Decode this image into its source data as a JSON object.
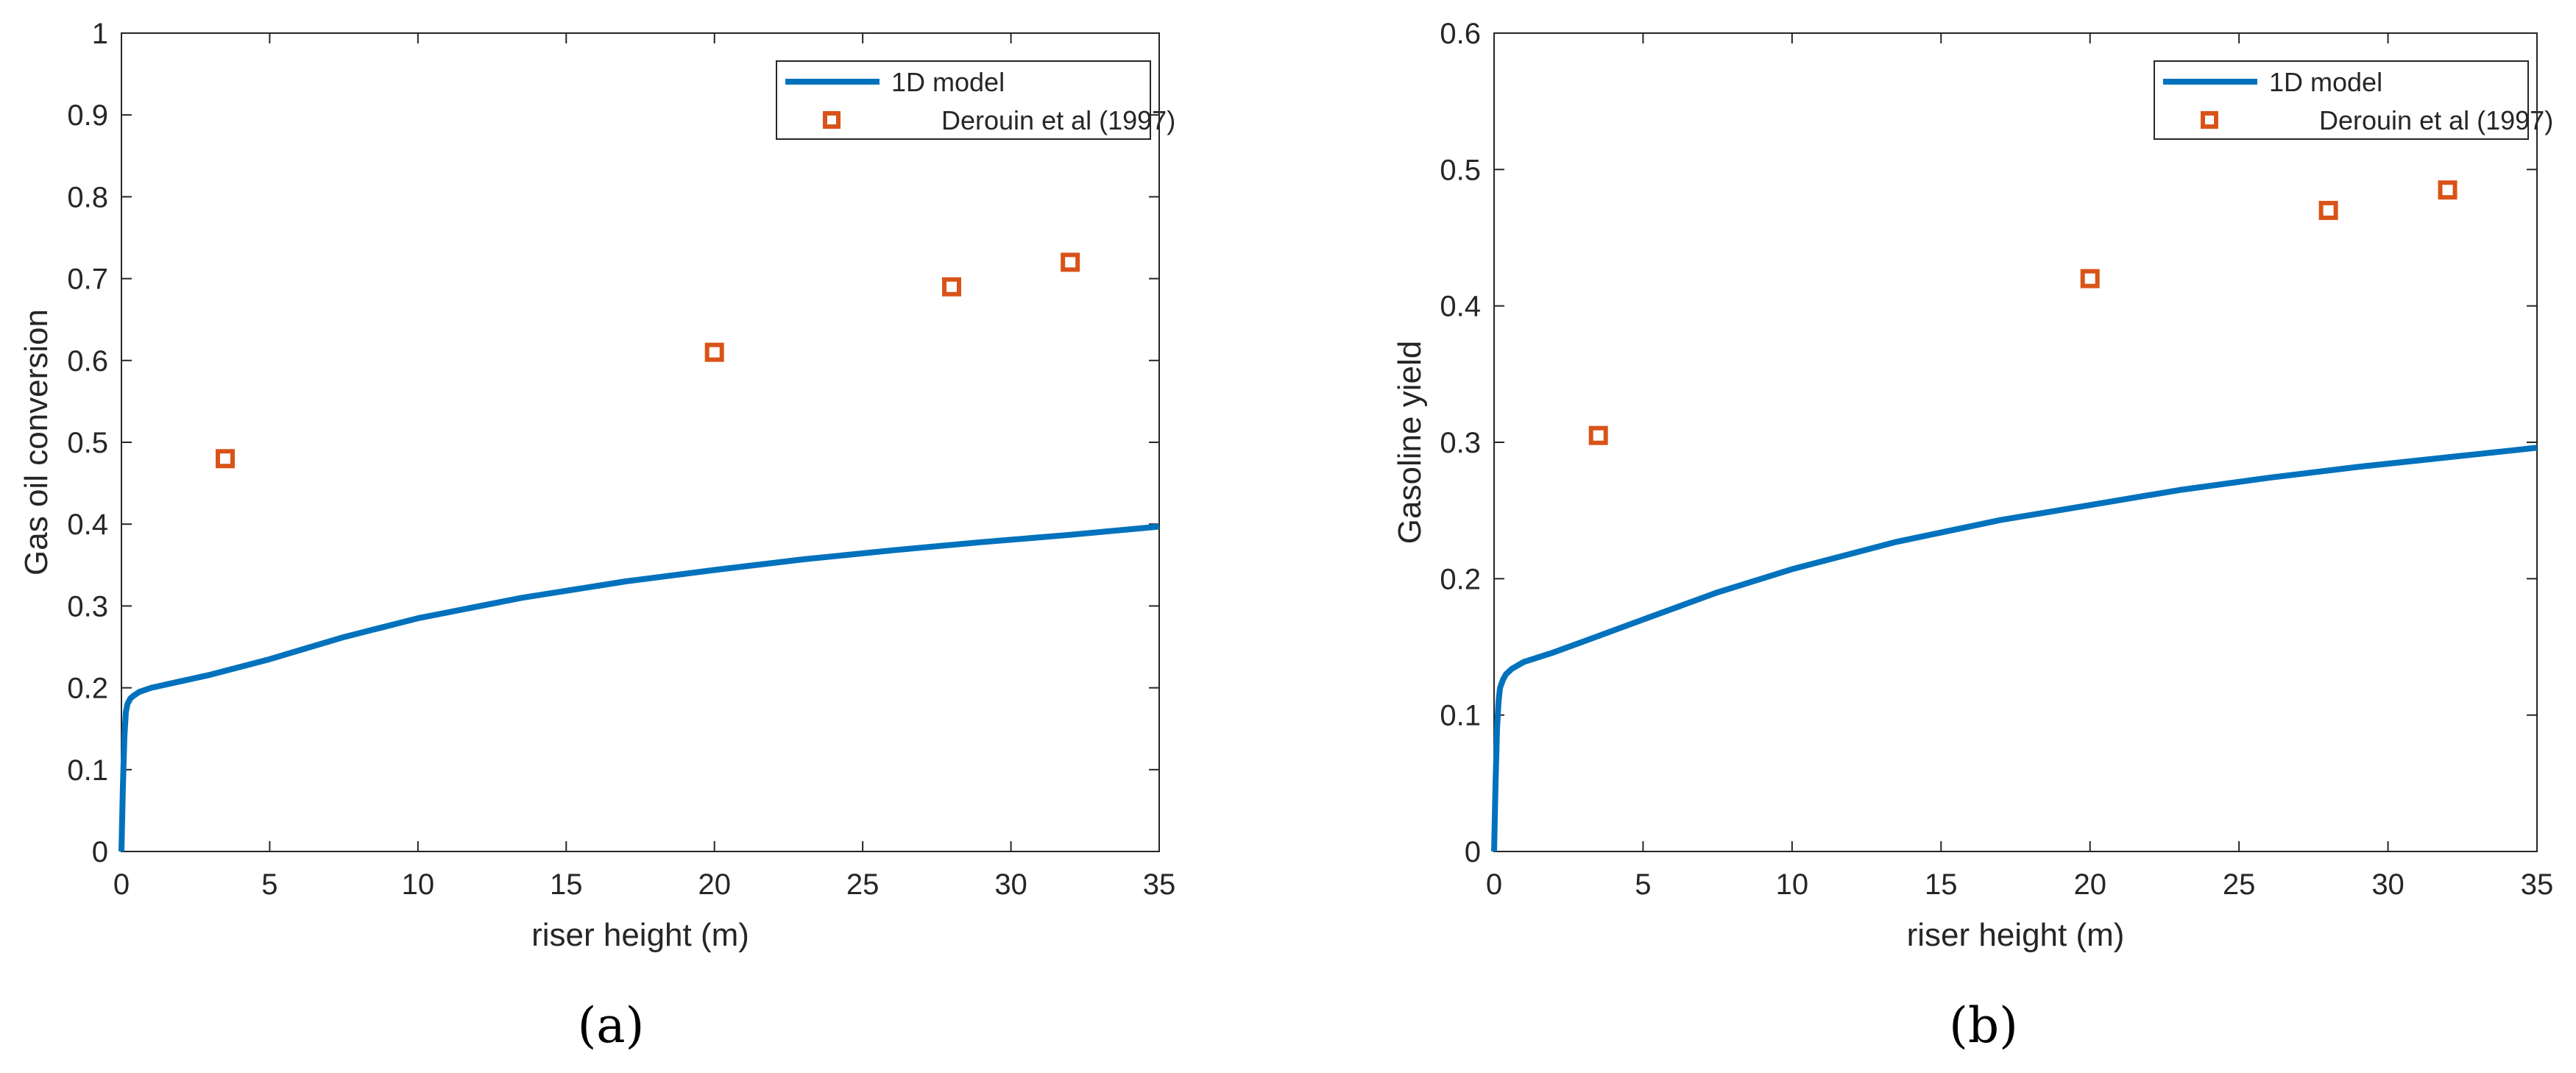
{
  "chart_data": [
    {
      "id": "a",
      "type": "line",
      "panel_label": "(a)",
      "xlabel": "riser height (m)",
      "ylabel": "Gas oil conversion",
      "xlim": [
        0,
        35
      ],
      "ylim": [
        0,
        1
      ],
      "xticks": [
        0,
        5,
        10,
        15,
        20,
        25,
        30,
        35
      ],
      "yticks": [
        0,
        0.1,
        0.2,
        0.3,
        0.4,
        0.5,
        0.6,
        0.7,
        0.8,
        0.9,
        1
      ],
      "ytick_labels": [
        "0",
        "0.1",
        "0.2",
        "0.3",
        "0.4",
        "0.5",
        "0.6",
        "0.7",
        "0.8",
        "0.9",
        "1"
      ],
      "legend": {
        "location": "top-right",
        "entries": [
          {
            "label": "1D model",
            "style": "line",
            "color": "#0072BD"
          },
          {
            "label": "Derouin et al (1997)",
            "style": "square-marker",
            "color": "#D95319"
          }
        ]
      },
      "series": [
        {
          "name": "1D model",
          "kind": "line",
          "color": "#0072BD",
          "x": [
            0,
            0.05,
            0.1,
            0.15,
            0.2,
            0.3,
            0.4,
            0.6,
            1,
            2,
            3,
            5,
            7.5,
            10,
            13.5,
            17,
            20,
            23,
            26,
            29,
            32,
            35
          ],
          "y": [
            0,
            0.08,
            0.14,
            0.17,
            0.18,
            0.187,
            0.19,
            0.195,
            0.2,
            0.208,
            0.216,
            0.235,
            0.262,
            0.285,
            0.31,
            0.33,
            0.344,
            0.357,
            0.368,
            0.378,
            0.387,
            0.397
          ]
        },
        {
          "name": "Derouin et al (1997)",
          "kind": "scatter",
          "color": "#D95319",
          "x": [
            3.5,
            20,
            28,
            32
          ],
          "y": [
            0.48,
            0.61,
            0.69,
            0.72
          ]
        }
      ]
    },
    {
      "id": "b",
      "type": "line",
      "panel_label": "(b)",
      "xlabel": "riser height (m)",
      "ylabel": "Gasoline yield",
      "xlim": [
        0,
        35
      ],
      "ylim": [
        0,
        0.6
      ],
      "xticks": [
        0,
        5,
        10,
        15,
        20,
        25,
        30,
        35
      ],
      "yticks": [
        0,
        0.1,
        0.2,
        0.3,
        0.4,
        0.5,
        0.6
      ],
      "ytick_labels": [
        "0",
        "0.1",
        "0.2",
        "0.3",
        "0.4",
        "0.5",
        "0.6"
      ],
      "legend": {
        "location": "top-right",
        "entries": [
          {
            "label": "1D model",
            "style": "line",
            "color": "#0072BD"
          },
          {
            "label": "Derouin et al (1997)",
            "style": "square-marker",
            "color": "#D95319"
          }
        ]
      },
      "series": [
        {
          "name": "1D model",
          "kind": "line",
          "color": "#0072BD",
          "x": [
            0,
            0.05,
            0.1,
            0.15,
            0.2,
            0.3,
            0.4,
            0.6,
            1,
            2,
            3,
            5,
            7.5,
            10,
            13.5,
            17,
            20,
            23,
            26,
            29,
            32,
            35
          ],
          "y": [
            0,
            0.05,
            0.09,
            0.11,
            0.12,
            0.126,
            0.13,
            0.134,
            0.139,
            0.146,
            0.154,
            0.17,
            0.19,
            0.207,
            0.227,
            0.243,
            0.254,
            0.265,
            0.274,
            0.282,
            0.289,
            0.296
          ]
        },
        {
          "name": "Derouin et al (1997)",
          "kind": "scatter",
          "color": "#D95319",
          "x": [
            3.5,
            20,
            28,
            32
          ],
          "y": [
            0.305,
            0.42,
            0.47,
            0.485
          ]
        }
      ]
    }
  ]
}
